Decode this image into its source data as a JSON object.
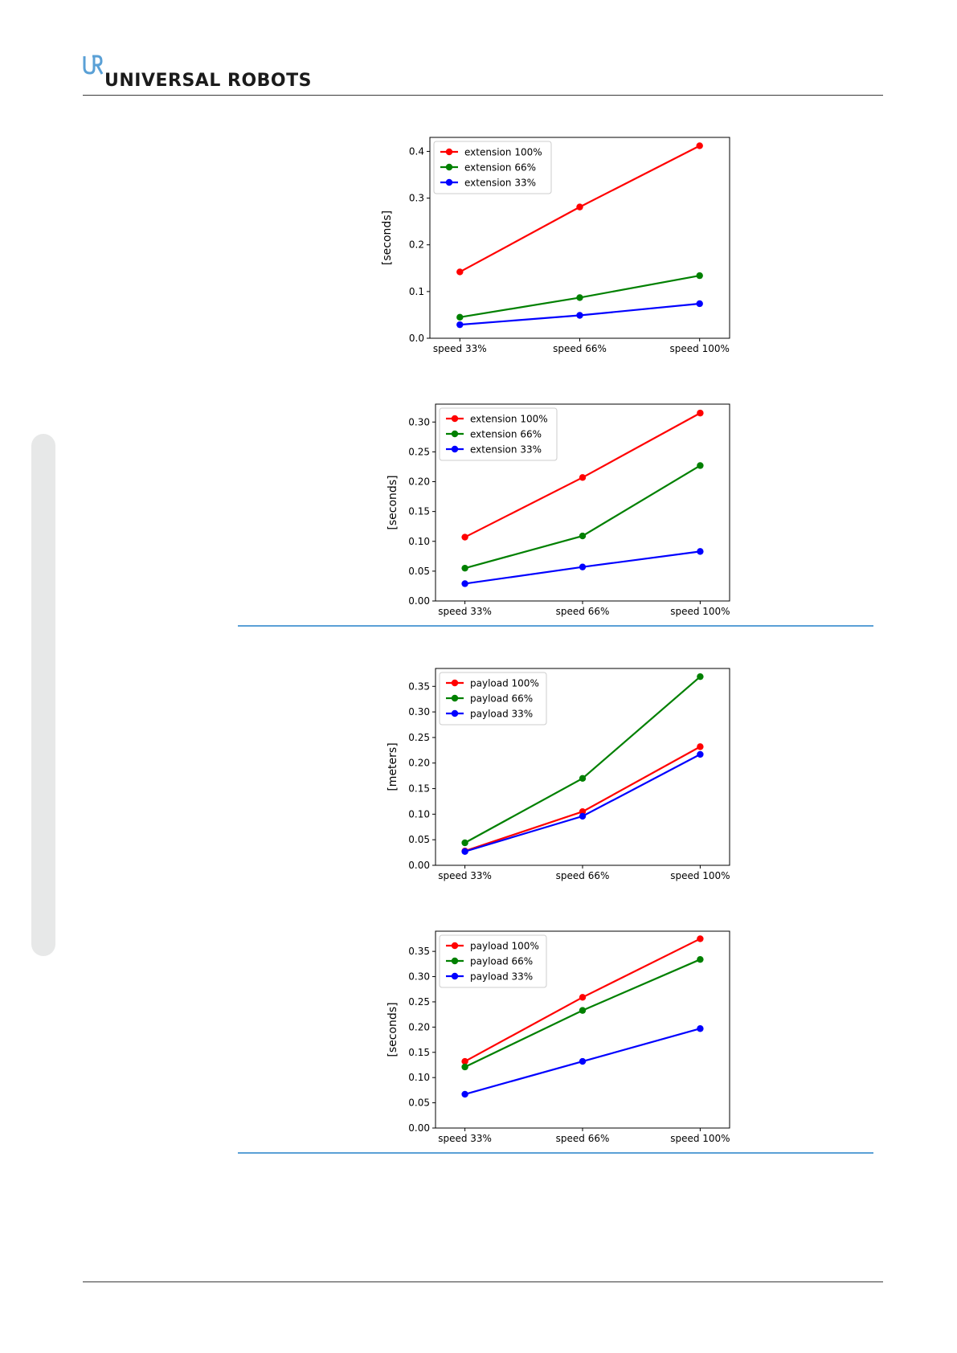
{
  "header": {
    "brand_name": "UNIVERSAL ROBOTS",
    "logo_mark": "UR",
    "colors": {
      "logo_mark": "#5aa0d6",
      "text": "#1b1b1b",
      "section_rule": "#5aa0d6"
    }
  },
  "series_colors": {
    "100%": "#ff0000",
    "66%": "#008000",
    "33%": "#0000ff"
  },
  "chart_data": [
    {
      "type": "line",
      "categories": [
        "speed 33%",
        "speed 66%",
        "speed 100%"
      ],
      "ylabel": "[seconds]",
      "ylim": [
        0,
        0.43
      ],
      "yticks": [
        "0.0",
        "0.1",
        "0.2",
        "0.3",
        "0.4"
      ],
      "legend_position": "top-left",
      "series": [
        {
          "name": "extension 100%",
          "color": "#ff0000",
          "values": [
            0.142,
            0.281,
            0.412
          ]
        },
        {
          "name": "extension 66%",
          "color": "#008000",
          "values": [
            0.045,
            0.087,
            0.134
          ]
        },
        {
          "name": "extension 33%",
          "color": "#0000ff",
          "values": [
            0.029,
            0.049,
            0.074
          ]
        }
      ]
    },
    {
      "type": "line",
      "categories": [
        "speed 33%",
        "speed 66%",
        "speed 100%"
      ],
      "ylabel": "[seconds]",
      "ylim": [
        0,
        0.33
      ],
      "yticks": [
        "0.00",
        "0.05",
        "0.10",
        "0.15",
        "0.20",
        "0.25",
        "0.30"
      ],
      "legend_position": "top-left",
      "series": [
        {
          "name": "extension 100%",
          "color": "#ff0000",
          "values": [
            0.107,
            0.207,
            0.315
          ]
        },
        {
          "name": "extension 66%",
          "color": "#008000",
          "values": [
            0.055,
            0.109,
            0.227
          ]
        },
        {
          "name": "extension 33%",
          "color": "#0000ff",
          "values": [
            0.029,
            0.057,
            0.083
          ]
        }
      ]
    },
    {
      "type": "line",
      "categories": [
        "speed 33%",
        "speed 66%",
        "speed 100%"
      ],
      "ylabel": "[meters]",
      "ylim": [
        0,
        0.385
      ],
      "yticks": [
        "0.00",
        "0.05",
        "0.10",
        "0.15",
        "0.20",
        "0.25",
        "0.30",
        "0.35"
      ],
      "legend_position": "top-left",
      "series": [
        {
          "name": "payload 100%",
          "color": "#ff0000",
          "values": [
            0.028,
            0.105,
            0.232
          ]
        },
        {
          "name": "payload 66%",
          "color": "#008000",
          "values": [
            0.044,
            0.17,
            0.369
          ]
        },
        {
          "name": "payload 33%",
          "color": "#0000ff",
          "values": [
            0.027,
            0.096,
            0.217
          ]
        }
      ]
    },
    {
      "type": "line",
      "categories": [
        "speed 33%",
        "speed 66%",
        "speed 100%"
      ],
      "ylabel": "[seconds]",
      "ylim": [
        0,
        0.39
      ],
      "yticks": [
        "0.00",
        "0.05",
        "0.10",
        "0.15",
        "0.20",
        "0.25",
        "0.30",
        "0.35"
      ],
      "legend_position": "top-left",
      "series": [
        {
          "name": "payload 100%",
          "color": "#ff0000",
          "values": [
            0.132,
            0.259,
            0.375
          ]
        },
        {
          "name": "payload 66%",
          "color": "#008000",
          "values": [
            0.121,
            0.233,
            0.334
          ]
        },
        {
          "name": "payload 33%",
          "color": "#0000ff",
          "values": [
            0.067,
            0.132,
            0.197
          ]
        }
      ]
    }
  ]
}
